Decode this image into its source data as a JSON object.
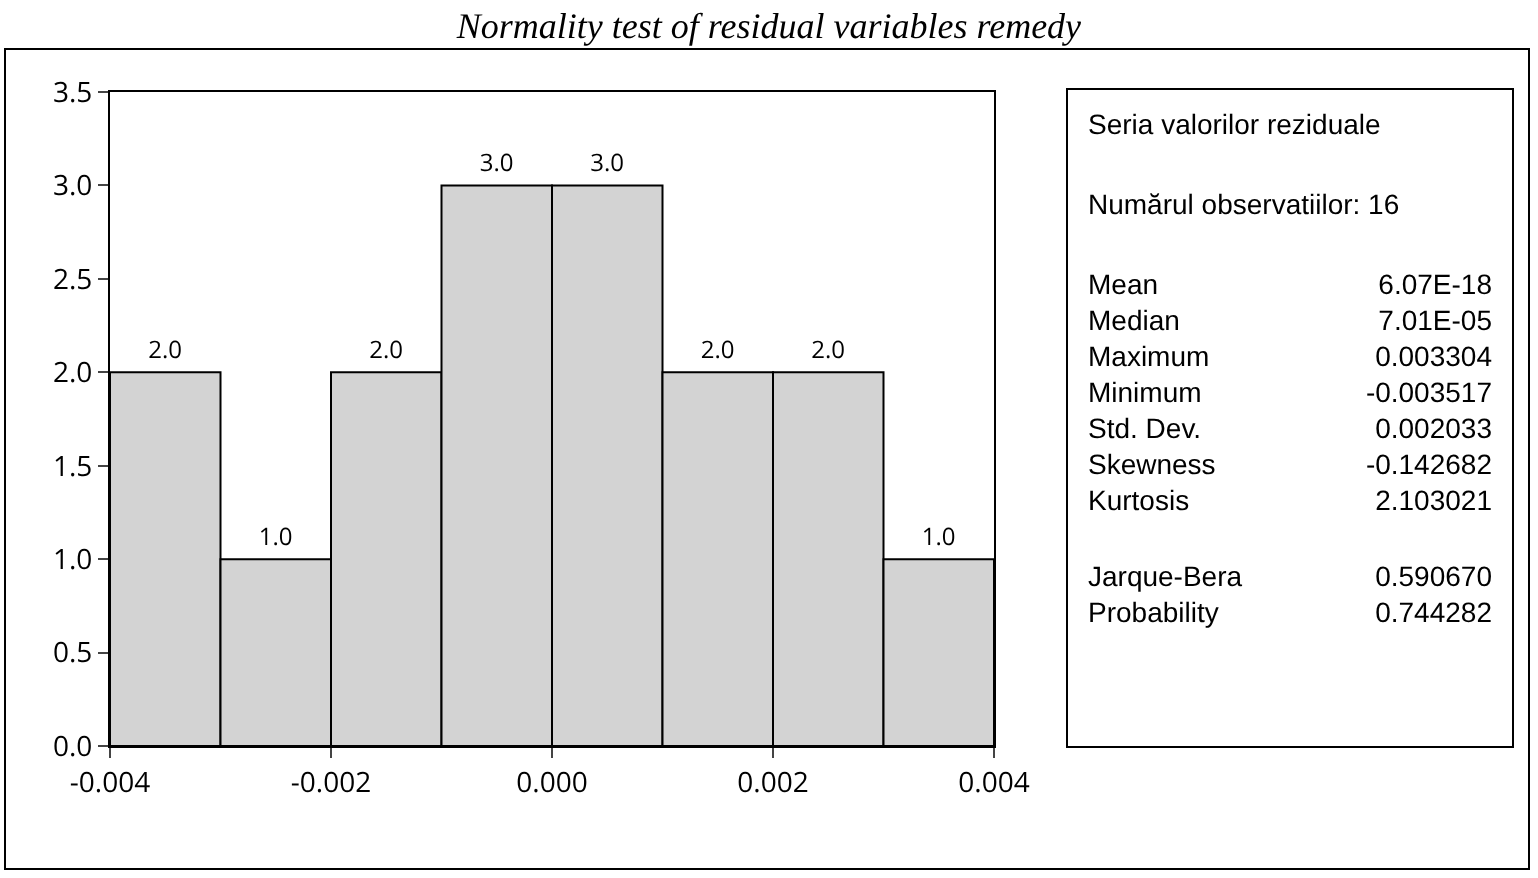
{
  "chart_data": {
    "type": "histogram",
    "title": "Normality test of residual variables remedy",
    "bins": [
      -0.004,
      -0.003,
      -0.002,
      -0.001,
      0.0,
      0.001,
      0.002,
      0.003,
      0.004
    ],
    "values": [
      2,
      1,
      2,
      3,
      3,
      2,
      2,
      1
    ],
    "value_labels": [
      "2.0",
      "1.0",
      "2.0",
      "3.0",
      "3.0",
      "2.0",
      "2.0",
      "1.0"
    ],
    "color": "#d3d3d3",
    "xlim": [
      -0.004,
      0.004
    ],
    "xticks": [
      {
        "value": -0.004,
        "label": "-0.004"
      },
      {
        "value": -0.002,
        "label": "-0.002"
      },
      {
        "value": 0,
        "label": "0.000"
      },
      {
        "value": 0.002,
        "label": "0.002"
      },
      {
        "value": 0.004,
        "label": "0.004"
      }
    ],
    "ylim": [
      0,
      3.5
    ],
    "yticks": [
      {
        "value": 0,
        "label": "0.0"
      },
      {
        "value": 0.5,
        "label": "0.5"
      },
      {
        "value": 1,
        "label": "1.0"
      },
      {
        "value": 1.5,
        "label": "1.5"
      },
      {
        "value": 2,
        "label": "2.0"
      },
      {
        "value": 2.5,
        "label": "2.5"
      },
      {
        "value": 3,
        "label": "3.0"
      },
      {
        "value": 3.5,
        "label": "3.5"
      }
    ],
    "grid": false,
    "legend": false,
    "annotations": [
      "Seria valorilor reziduale",
      "Numărul observatiilor: 16",
      "Mean",
      "6.07E-18",
      "Median",
      "7.01E-05",
      "Maximum",
      "0.003304",
      "Minimum",
      "-0.003517",
      "Std. Dev.",
      "0.002033",
      "Skewness",
      "-0.142682",
      "Kurtosis",
      "2.103021",
      "Jarque-Bera",
      "0.590670",
      "Probability",
      "0.744282"
    ]
  }
}
